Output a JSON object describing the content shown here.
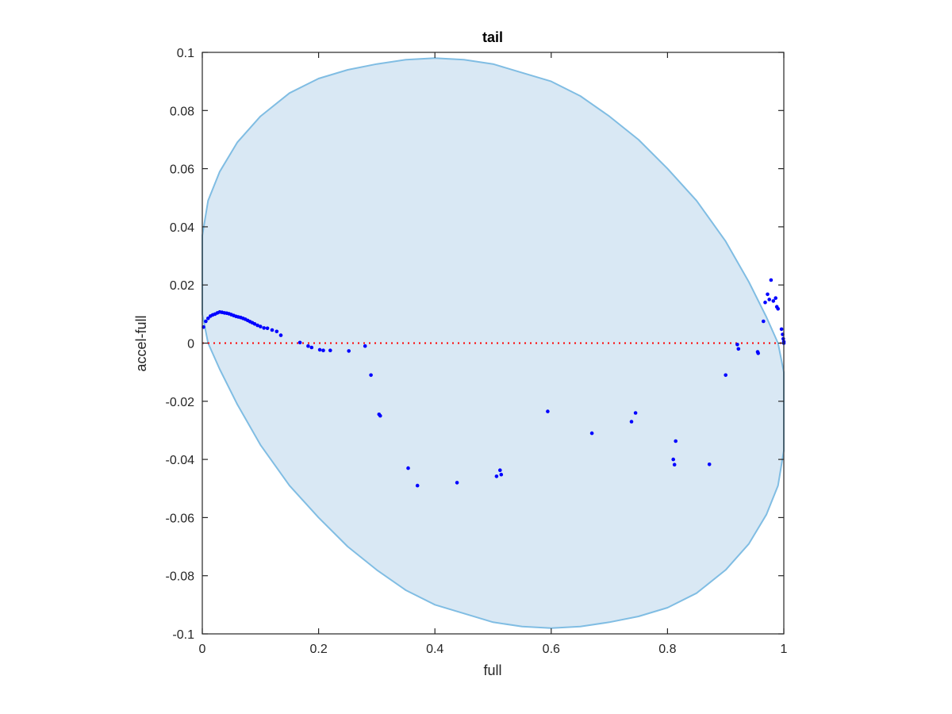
{
  "chart_data": {
    "type": "scatter",
    "title": "tail",
    "xlabel": "full",
    "ylabel": "accel-full",
    "xlim": [
      0,
      1
    ],
    "ylim": [
      -0.1,
      0.1
    ],
    "xticks": [
      "0",
      "0.2",
      "0.4",
      "0.6",
      "0.8",
      "1"
    ],
    "xtick_values": [
      0,
      0.2,
      0.4,
      0.6,
      0.8,
      1
    ],
    "yticks": [
      "-0.1",
      "-0.08",
      "-0.06",
      "-0.04",
      "-0.02",
      "0",
      "0.02",
      "0.04",
      "0.06",
      "0.08",
      "0.1"
    ],
    "ytick_values": [
      -0.1,
      -0.08,
      -0.06,
      -0.04,
      -0.02,
      0,
      0.02,
      0.04,
      0.06,
      0.08,
      0.1
    ],
    "grid": false,
    "reference_line": {
      "y": 0,
      "style": "dotted",
      "color": "#ff0000"
    },
    "region": {
      "shape": "ellipse",
      "fill_color": "#d9e8f4",
      "edge_color": "#80bde3",
      "outline": [
        [
          0.0,
          0.037
        ],
        [
          0.01,
          0.049
        ],
        [
          0.03,
          0.059
        ],
        [
          0.06,
          0.069
        ],
        [
          0.1,
          0.078
        ],
        [
          0.15,
          0.086
        ],
        [
          0.2,
          0.091
        ],
        [
          0.25,
          0.094
        ],
        [
          0.3,
          0.096
        ],
        [
          0.35,
          0.0975
        ],
        [
          0.4,
          0.098
        ],
        [
          0.45,
          0.0975
        ],
        [
          0.5,
          0.096
        ],
        [
          0.55,
          0.093
        ],
        [
          0.6,
          0.09
        ],
        [
          0.65,
          0.085
        ],
        [
          0.7,
          0.078
        ],
        [
          0.75,
          0.07
        ],
        [
          0.8,
          0.06
        ],
        [
          0.85,
          0.049
        ],
        [
          0.9,
          0.035
        ],
        [
          0.94,
          0.021
        ],
        [
          0.97,
          0.009
        ],
        [
          0.99,
          0.0
        ],
        [
          1.0,
          -0.01
        ],
        [
          1.0,
          -0.037
        ],
        [
          0.99,
          -0.049
        ],
        [
          0.97,
          -0.059
        ],
        [
          0.94,
          -0.069
        ],
        [
          0.9,
          -0.078
        ],
        [
          0.85,
          -0.086
        ],
        [
          0.8,
          -0.091
        ],
        [
          0.75,
          -0.094
        ],
        [
          0.7,
          -0.096
        ],
        [
          0.65,
          -0.0975
        ],
        [
          0.6,
          -0.098
        ],
        [
          0.55,
          -0.0975
        ],
        [
          0.5,
          -0.096
        ],
        [
          0.45,
          -0.093
        ],
        [
          0.4,
          -0.09
        ],
        [
          0.35,
          -0.085
        ],
        [
          0.3,
          -0.078
        ],
        [
          0.25,
          -0.07
        ],
        [
          0.2,
          -0.06
        ],
        [
          0.15,
          -0.049
        ],
        [
          0.1,
          -0.035
        ],
        [
          0.06,
          -0.021
        ],
        [
          0.03,
          -0.009
        ],
        [
          0.01,
          0.0
        ],
        [
          0.0,
          0.01
        ]
      ]
    },
    "series": [
      {
        "marker_color": "#0000ff",
        "points": [
          [
            0.002,
            0.0055
          ],
          [
            0.006,
            0.0075
          ],
          [
            0.01,
            0.0085
          ],
          [
            0.014,
            0.0093
          ],
          [
            0.018,
            0.0097
          ],
          [
            0.022,
            0.01
          ],
          [
            0.026,
            0.0104
          ],
          [
            0.03,
            0.0107
          ],
          [
            0.034,
            0.0106
          ],
          [
            0.038,
            0.0104
          ],
          [
            0.042,
            0.0103
          ],
          [
            0.046,
            0.0101
          ],
          [
            0.05,
            0.0098
          ],
          [
            0.054,
            0.0095
          ],
          [
            0.058,
            0.0092
          ],
          [
            0.062,
            0.009
          ],
          [
            0.066,
            0.0088
          ],
          [
            0.07,
            0.0085
          ],
          [
            0.074,
            0.0082
          ],
          [
            0.078,
            0.0078
          ],
          [
            0.082,
            0.0074
          ],
          [
            0.086,
            0.007
          ],
          [
            0.09,
            0.0066
          ],
          [
            0.095,
            0.0061
          ],
          [
            0.1,
            0.0057
          ],
          [
            0.106,
            0.0052
          ],
          [
            0.112,
            0.0051
          ],
          [
            0.12,
            0.0045
          ],
          [
            0.128,
            0.004
          ],
          [
            0.135,
            0.0027
          ],
          [
            0.168,
            0.0002
          ],
          [
            0.182,
            -0.001
          ],
          [
            0.188,
            -0.0015
          ],
          [
            0.202,
            -0.0023
          ],
          [
            0.208,
            -0.0025
          ],
          [
            0.22,
            -0.0025
          ],
          [
            0.252,
            -0.0027
          ],
          [
            0.28,
            -0.001
          ],
          [
            0.29,
            -0.011
          ],
          [
            0.304,
            -0.0245
          ],
          [
            0.306,
            -0.025
          ],
          [
            0.354,
            -0.043
          ],
          [
            0.37,
            -0.049
          ],
          [
            0.438,
            -0.048
          ],
          [
            0.506,
            -0.0458
          ],
          [
            0.512,
            -0.0437
          ],
          [
            0.514,
            -0.0452
          ],
          [
            0.594,
            -0.0235
          ],
          [
            0.67,
            -0.031
          ],
          [
            0.738,
            -0.027
          ],
          [
            0.745,
            -0.024
          ],
          [
            0.81,
            -0.04
          ],
          [
            0.812,
            -0.0418
          ],
          [
            0.814,
            -0.0337
          ],
          [
            0.872,
            -0.0417
          ],
          [
            0.9,
            -0.011
          ],
          [
            0.92,
            -0.0005
          ],
          [
            0.922,
            -0.002
          ],
          [
            0.955,
            -0.003
          ],
          [
            0.956,
            -0.0035
          ],
          [
            0.965,
            0.0075
          ],
          [
            0.968,
            0.014
          ],
          [
            0.972,
            0.0168
          ],
          [
            0.975,
            0.015
          ],
          [
            0.978,
            0.0217
          ],
          [
            0.982,
            0.0145
          ],
          [
            0.986,
            0.0155
          ],
          [
            0.988,
            0.0125
          ],
          [
            0.99,
            0.0118
          ],
          [
            0.996,
            0.0048
          ],
          [
            0.998,
            0.003
          ],
          [
            0.999,
            0.0015
          ],
          [
            1.0,
            0.0005
          ],
          [
            1.0,
            0.0
          ]
        ]
      }
    ]
  }
}
